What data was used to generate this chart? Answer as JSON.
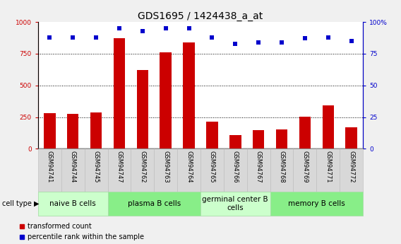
{
  "title": "GDS1695 / 1424438_a_at",
  "samples": [
    "GSM94741",
    "GSM94744",
    "GSM94745",
    "GSM94747",
    "GSM94762",
    "GSM94763",
    "GSM94764",
    "GSM94765",
    "GSM94766",
    "GSM94767",
    "GSM94768",
    "GSM94769",
    "GSM94771",
    "GSM94772"
  ],
  "bar_values": [
    280,
    275,
    285,
    870,
    620,
    760,
    840,
    215,
    110,
    150,
    155,
    255,
    340,
    170
  ],
  "dot_values": [
    88,
    88,
    88,
    95,
    93,
    95,
    95,
    88,
    83,
    84,
    84,
    87,
    88,
    85
  ],
  "bar_color": "#cc0000",
  "dot_color": "#0000cc",
  "ylim_left": [
    0,
    1000
  ],
  "ylim_right": [
    0,
    100
  ],
  "yticks_left": [
    0,
    250,
    500,
    750,
    1000
  ],
  "yticks_right": [
    0,
    25,
    50,
    75,
    100
  ],
  "yticklabels_right": [
    "0",
    "25",
    "50",
    "75",
    "100%"
  ],
  "groups": [
    {
      "label": "naive B cells",
      "start": 0,
      "end": 3,
      "color": "#ccffcc"
    },
    {
      "label": "plasma B cells",
      "start": 3,
      "end": 7,
      "color": "#88ee88"
    },
    {
      "label": "germinal center B\ncells",
      "start": 7,
      "end": 10,
      "color": "#ccffcc"
    },
    {
      "label": "memory B cells",
      "start": 10,
      "end": 14,
      "color": "#88ee88"
    }
  ],
  "cell_type_label": "cell type",
  "legend_bar_label": "transformed count",
  "legend_dot_label": "percentile rank within the sample",
  "fig_bg": "#f0f0f0",
  "plot_bg": "#ffffff",
  "title_fontsize": 10,
  "tick_label_fontsize": 6.5,
  "sample_fontsize": 6,
  "group_fontsize": 7.5,
  "legend_fontsize": 7
}
